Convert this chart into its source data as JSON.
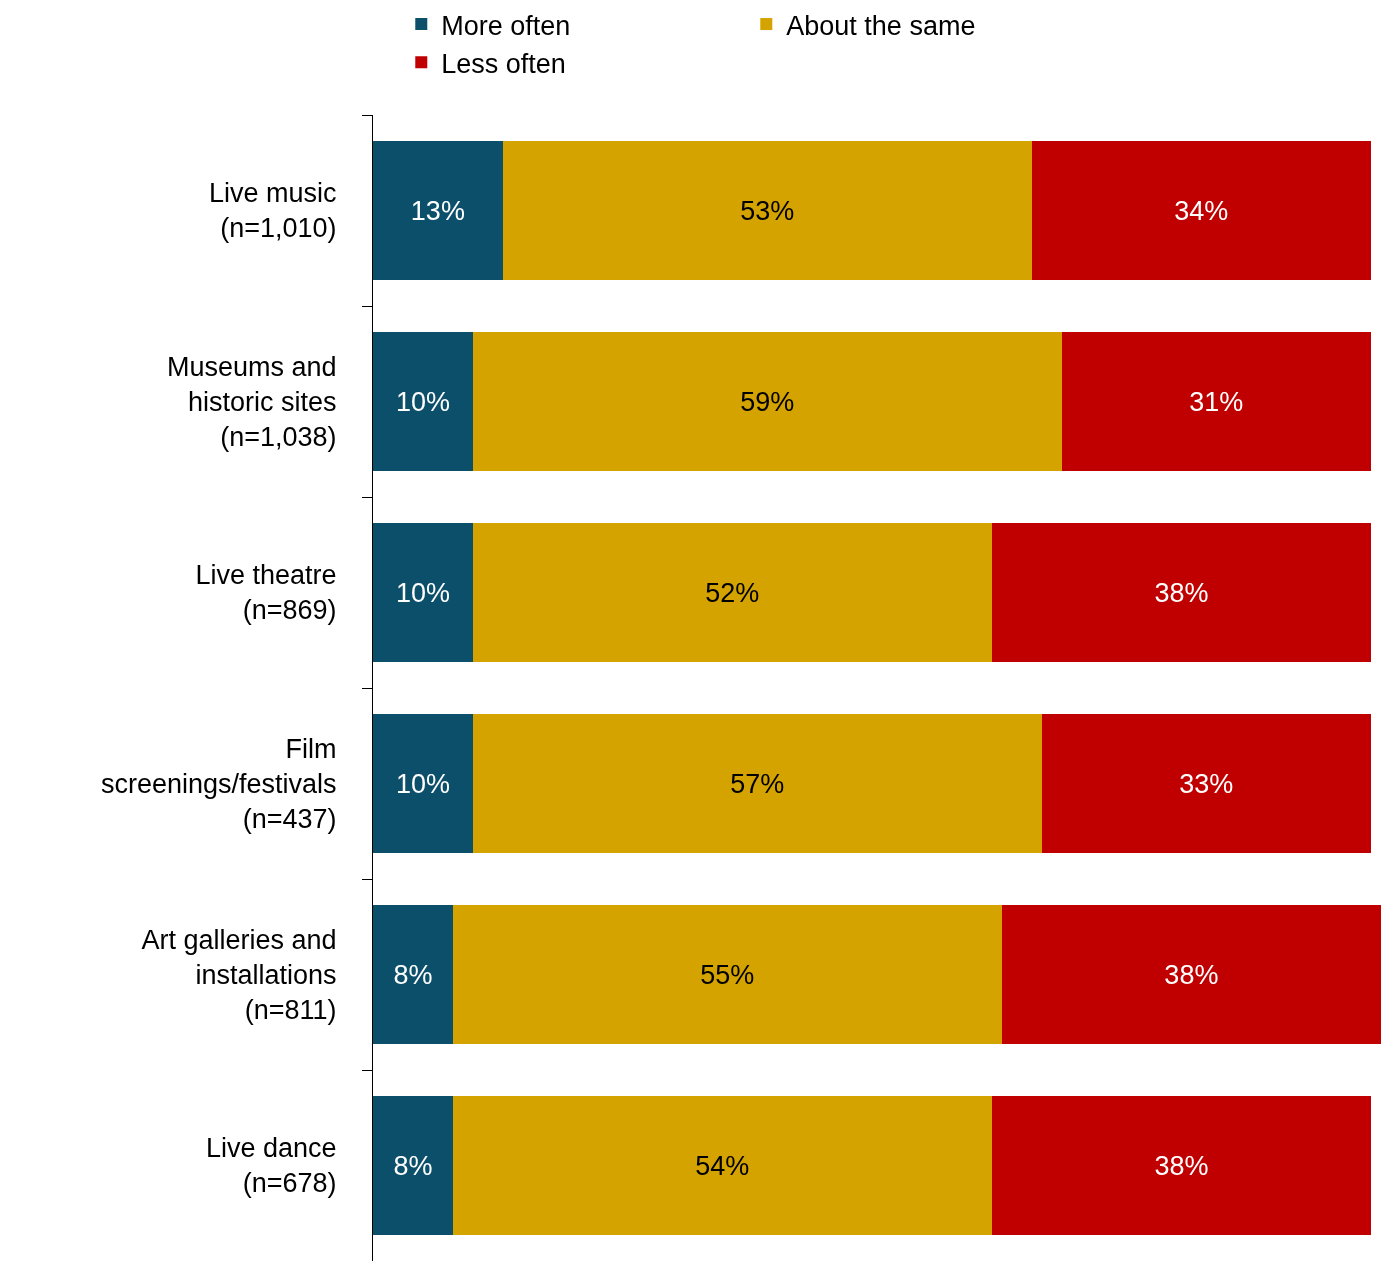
{
  "chart_data": {
    "type": "bar",
    "orientation": "horizontal",
    "stacked": true,
    "legend": "top",
    "tick_labels": "y",
    "xlim": [
      0,
      101
    ],
    "categories": [
      "Live music\n(n=1,010)",
      "Museums and\nhistoric sites\n(n=1,038)",
      "Live theatre\n(n=869)",
      "Film\nscreenings/festivals\n(n=437)",
      "Art galleries and\ninstallations\n(n=811)",
      "Live dance\n(n=678)"
    ],
    "series": [
      {
        "name": "More often",
        "color": "#0c4f6b",
        "values": [
          13,
          10,
          10,
          10,
          8,
          8
        ],
        "value_labels": [
          "13%",
          "10%",
          "10%",
          "10%",
          "8%",
          "8%"
        ]
      },
      {
        "name": "About the same",
        "color": "#d4a300",
        "values": [
          53,
          59,
          52,
          57,
          55,
          54
        ],
        "value_labels": [
          "53%",
          "59%",
          "52%",
          "57%",
          "55%",
          "54%"
        ]
      },
      {
        "name": "Less often",
        "color": "#c00000",
        "values": [
          34,
          31,
          38,
          33,
          38,
          38
        ],
        "value_labels": [
          "34%",
          "31%",
          "38%",
          "33%",
          "38%",
          "38%"
        ]
      }
    ]
  }
}
